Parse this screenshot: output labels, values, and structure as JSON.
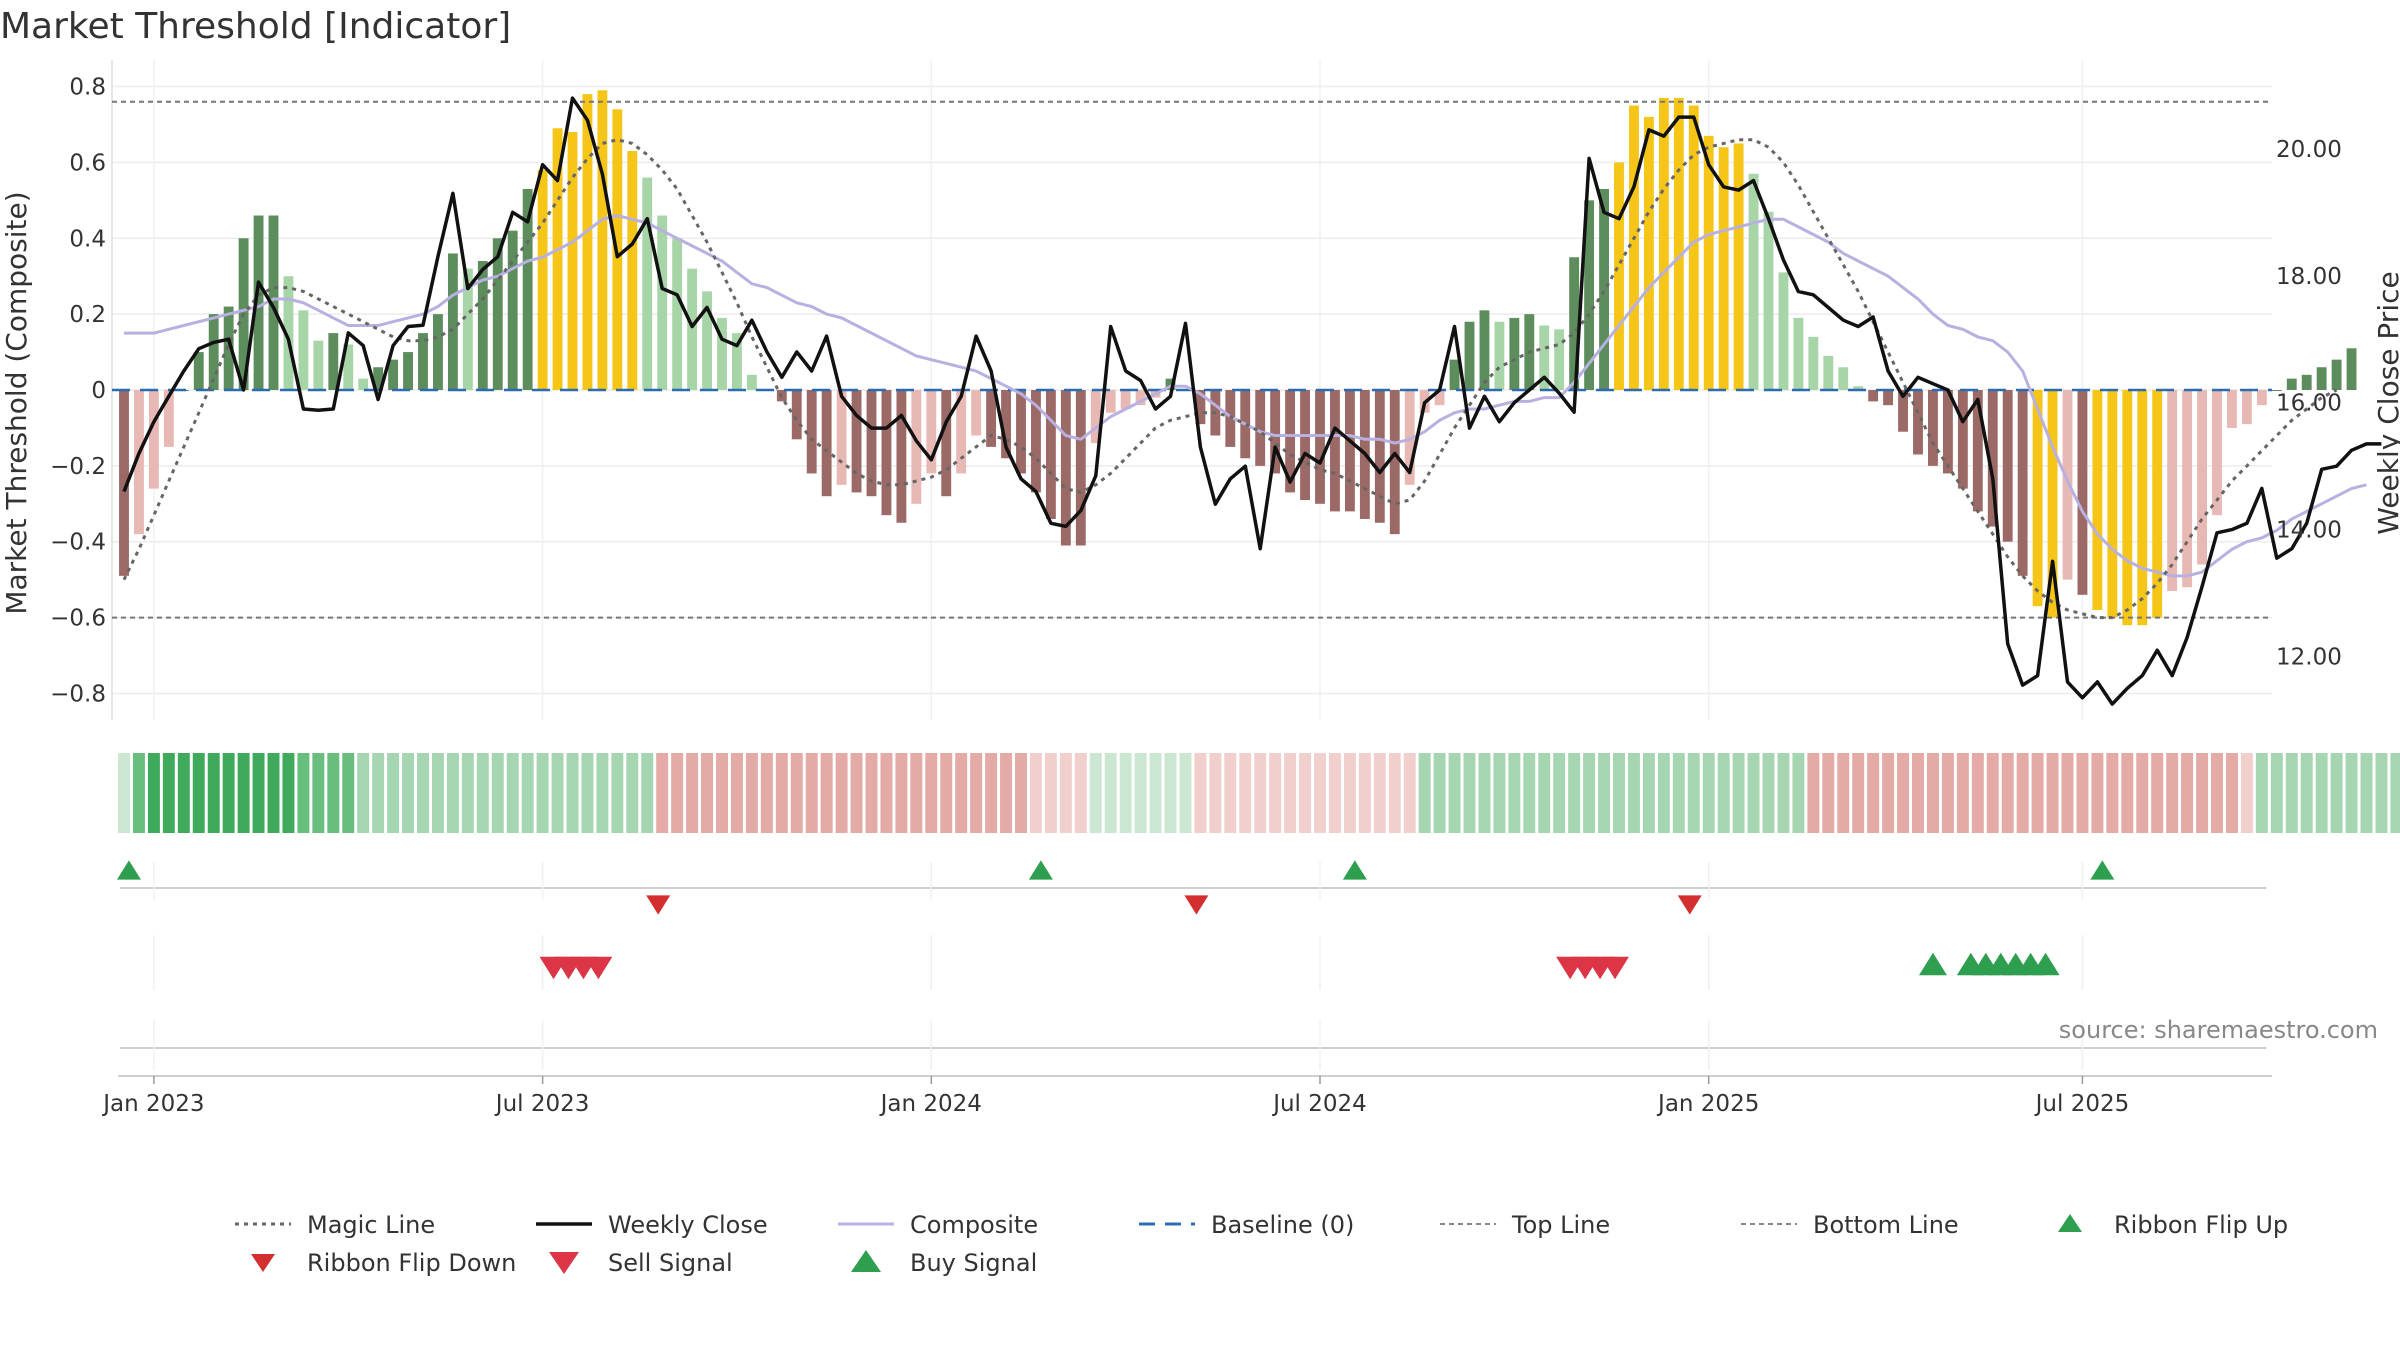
{
  "chart_data": {
    "type": "bar",
    "title": "Market Threshold [Indicator]",
    "ylabel_left": "Market Threshold (Composite)",
    "ylabel_right": "Weekly Close Price",
    "source": "source: sharemaestro.com",
    "ylim_left": [
      -0.87,
      0.87
    ],
    "ylim_right": [
      11.0,
      21.4
    ],
    "y_ticks_left": [
      "0.8",
      "0.6",
      "0.4",
      "0.2",
      "0",
      "−0.2",
      "−0.4",
      "−0.6",
      "−0.8"
    ],
    "y_ticks_left_values": [
      0.8,
      0.6,
      0.4,
      0.2,
      0,
      -0.2,
      -0.4,
      -0.6,
      -0.8
    ],
    "y_ticks_right": [
      "20.00",
      "18.00",
      "16.00",
      "14.00",
      "12.00"
    ],
    "y_ticks_right_values": [
      20,
      18,
      16,
      14,
      12
    ],
    "x_ticks": [
      "Jan 2023",
      "Jul 2023",
      "Jan 2024",
      "Jul 2024",
      "Jan 2025",
      "Jul 2025"
    ],
    "x_tick_weeks": [
      2,
      28,
      54,
      80,
      106,
      131
    ],
    "top_line": 0.76,
    "bottom_line": -0.6,
    "grid": true,
    "colors": {
      "strong_up": "#5d8c5d",
      "weak_up": "#a8d5a8",
      "strong_down": "#9c6a66",
      "weak_down": "#e8b8b4",
      "extreme": "#f5c518",
      "close": "#111111",
      "composite": "#b8b0e0",
      "magic": "#666666",
      "baseline": "#2b6cb0",
      "buy": "#2e9e4f",
      "sell": "#dc3545",
      "flip_up": "#2e9e4f",
      "flip_down": "#d32f2f"
    },
    "bars": [
      -0.49,
      -0.38,
      -0.26,
      -0.15,
      0,
      0.1,
      0.2,
      0.22,
      0.4,
      0.46,
      0.46,
      0.3,
      0.21,
      0.13,
      0.15,
      0.12,
      0.03,
      0.06,
      0.08,
      0.1,
      0.15,
      0.2,
      0.36,
      0.32,
      0.34,
      0.4,
      0.42,
      0.53,
      0.58,
      0.69,
      0.68,
      0.78,
      0.79,
      0.74,
      0.63,
      0.56,
      0.46,
      0.4,
      0.32,
      0.26,
      0.19,
      0.15,
      0.04,
      0,
      -0.03,
      -0.13,
      -0.22,
      -0.28,
      -0.25,
      -0.27,
      -0.28,
      -0.33,
      -0.35,
      -0.3,
      -0.22,
      -0.28,
      -0.22,
      -0.12,
      -0.15,
      -0.18,
      -0.22,
      -0.27,
      -0.34,
      -0.41,
      -0.41,
      -0.14,
      -0.06,
      -0.05,
      -0.04,
      -0.02,
      0.03,
      0,
      -0.09,
      -0.12,
      -0.15,
      -0.18,
      -0.2,
      -0.22,
      -0.27,
      -0.29,
      -0.3,
      -0.32,
      -0.32,
      -0.34,
      -0.35,
      -0.38,
      -0.25,
      -0.06,
      -0.04,
      0.08,
      0.18,
      0.21,
      0.18,
      0.19,
      0.2,
      0.17,
      0.16,
      0.35,
      0.5,
      0.53,
      0.6,
      0.75,
      0.72,
      0.77,
      0.77,
      0.75,
      0.67,
      0.64,
      0.65,
      0.57,
      0.47,
      0.31,
      0.19,
      0.14,
      0.09,
      0.06,
      0.01,
      -0.03,
      -0.04,
      -0.11,
      -0.17,
      -0.2,
      -0.22,
      -0.26,
      -0.32,
      -0.36,
      -0.4,
      -0.49,
      -0.57,
      -0.6,
      -0.5,
      -0.54,
      -0.58,
      -0.6,
      -0.62,
      -0.62,
      -0.6,
      -0.53,
      -0.52,
      -0.46,
      -0.33,
      -0.1,
      -0.09,
      -0.04,
      0,
      0.03,
      0.04,
      0.06,
      0.08,
      0.11
    ],
    "weekly_close": [
      14.6,
      15.2,
      15.7,
      16.1,
      16.5,
      16.85,
      16.95,
      17.0,
      16.2,
      17.9,
      17.5,
      17.0,
      15.9,
      15.88,
      15.9,
      17.1,
      16.9,
      16.05,
      16.9,
      17.2,
      17.22,
      18.3,
      19.3,
      17.8,
      18.1,
      18.3,
      19.0,
      18.85,
      19.75,
      19.5,
      20.8,
      20.45,
      19.6,
      18.3,
      18.5,
      18.9,
      17.8,
      17.7,
      17.2,
      17.5,
      17.0,
      16.9,
      17.3,
      16.8,
      16.4,
      16.8,
      16.5,
      17.05,
      16.1,
      15.8,
      15.6,
      15.6,
      15.8,
      15.4,
      15.1,
      15.7,
      16.1,
      17.05,
      16.5,
      15.3,
      14.8,
      14.6,
      14.1,
      14.05,
      14.3,
      14.85,
      17.2,
      16.5,
      16.35,
      15.9,
      16.1,
      17.25,
      15.3,
      14.4,
      14.8,
      15.0,
      13.7,
      15.3,
      14.75,
      15.2,
      15.05,
      15.6,
      15.4,
      15.2,
      14.9,
      15.2,
      14.9,
      16.0,
      16.2,
      17.2,
      15.6,
      16.1,
      15.7,
      16.0,
      16.2,
      16.4,
      16.15,
      15.85,
      19.85,
      19.0,
      18.9,
      19.4,
      20.3,
      20.2,
      20.5,
      20.5,
      19.75,
      19.4,
      19.35,
      19.5,
      18.9,
      18.25,
      17.75,
      17.7,
      17.5,
      17.3,
      17.2,
      17.35,
      16.5,
      16.1,
      16.4,
      16.3,
      16.2,
      15.7,
      16.05,
      14.8,
      12.2,
      11.55,
      11.7,
      13.5,
      11.6,
      11.35,
      11.6,
      11.25,
      11.5,
      11.7,
      12.1,
      11.7,
      12.3,
      13.1,
      13.95,
      14.0,
      14.1,
      14.65,
      13.55,
      13.7,
      14.1,
      14.95,
      15.0,
      15.25,
      15.35,
      15.35
    ],
    "composite": [
      0.15,
      0.15,
      0.15,
      0.16,
      0.17,
      0.18,
      0.19,
      0.2,
      0.21,
      0.22,
      0.24,
      0.24,
      0.23,
      0.21,
      0.19,
      0.17,
      0.17,
      0.17,
      0.18,
      0.19,
      0.2,
      0.22,
      0.25,
      0.27,
      0.29,
      0.3,
      0.32,
      0.34,
      0.35,
      0.37,
      0.39,
      0.42,
      0.45,
      0.46,
      0.45,
      0.44,
      0.42,
      0.4,
      0.38,
      0.36,
      0.34,
      0.31,
      0.28,
      0.27,
      0.25,
      0.23,
      0.22,
      0.2,
      0.19,
      0.17,
      0.15,
      0.13,
      0.11,
      0.09,
      0.08,
      0.07,
      0.06,
      0.05,
      0.03,
      0.01,
      -0.01,
      -0.04,
      -0.08,
      -0.12,
      -0.13,
      -0.1,
      -0.07,
      -0.05,
      -0.03,
      -0.01,
      0.01,
      0.01,
      -0.01,
      -0.04,
      -0.07,
      -0.09,
      -0.11,
      -0.12,
      -0.12,
      -0.12,
      -0.12,
      -0.12,
      -0.12,
      -0.13,
      -0.13,
      -0.14,
      -0.13,
      -0.11,
      -0.08,
      -0.06,
      -0.05,
      -0.05,
      -0.04,
      -0.03,
      -0.03,
      -0.02,
      -0.02,
      0.02,
      0.07,
      0.12,
      0.17,
      0.22,
      0.27,
      0.31,
      0.35,
      0.39,
      0.41,
      0.42,
      0.43,
      0.44,
      0.45,
      0.45,
      0.43,
      0.41,
      0.39,
      0.36,
      0.34,
      0.32,
      0.3,
      0.27,
      0.24,
      0.2,
      0.17,
      0.16,
      0.14,
      0.13,
      0.1,
      0.05,
      -0.05,
      -0.15,
      -0.24,
      -0.32,
      -0.38,
      -0.42,
      -0.45,
      -0.47,
      -0.48,
      -0.49,
      -0.49,
      -0.48,
      -0.45,
      -0.42,
      -0.4,
      -0.39,
      -0.37,
      -0.34,
      -0.32,
      -0.3,
      -0.28,
      -0.26,
      -0.25
    ],
    "magic_line": [
      -0.5,
      -0.42,
      -0.33,
      -0.24,
      -0.15,
      -0.06,
      0.03,
      0.12,
      0.2,
      0.25,
      0.27,
      0.27,
      0.26,
      0.24,
      0.22,
      0.2,
      0.18,
      0.16,
      0.14,
      0.13,
      0.13,
      0.14,
      0.16,
      0.2,
      0.24,
      0.29,
      0.34,
      0.39,
      0.44,
      0.5,
      0.56,
      0.61,
      0.65,
      0.66,
      0.65,
      0.62,
      0.58,
      0.53,
      0.46,
      0.39,
      0.31,
      0.23,
      0.14,
      0.06,
      -0.02,
      -0.08,
      -0.13,
      -0.16,
      -0.19,
      -0.22,
      -0.24,
      -0.25,
      -0.25,
      -0.24,
      -0.23,
      -0.21,
      -0.18,
      -0.15,
      -0.12,
      -0.13,
      -0.15,
      -0.18,
      -0.22,
      -0.26,
      -0.27,
      -0.25,
      -0.22,
      -0.18,
      -0.14,
      -0.1,
      -0.08,
      -0.07,
      -0.06,
      -0.06,
      -0.07,
      -0.09,
      -0.11,
      -0.14,
      -0.17,
      -0.19,
      -0.21,
      -0.22,
      -0.24,
      -0.26,
      -0.28,
      -0.3,
      -0.29,
      -0.24,
      -0.17,
      -0.1,
      -0.04,
      0.02,
      0.06,
      0.08,
      0.1,
      0.11,
      0.12,
      0.15,
      0.2,
      0.26,
      0.33,
      0.4,
      0.47,
      0.53,
      0.58,
      0.62,
      0.64,
      0.65,
      0.66,
      0.66,
      0.64,
      0.6,
      0.54,
      0.47,
      0.4,
      0.33,
      0.26,
      0.18,
      0.1,
      0.02,
      -0.06,
      -0.14,
      -0.2,
      -0.26,
      -0.32,
      -0.38,
      -0.44,
      -0.49,
      -0.53,
      -0.56,
      -0.58,
      -0.59,
      -0.6,
      -0.6,
      -0.58,
      -0.55,
      -0.51,
      -0.46,
      -0.4,
      -0.34,
      -0.29,
      -0.24,
      -0.2,
      -0.16,
      -0.12,
      -0.08,
      -0.05,
      -0.02,
      0.0
    ],
    "ribbon": [
      1,
      3,
      4,
      4,
      4,
      4,
      4,
      4,
      4,
      4,
      4,
      4,
      3,
      3,
      3,
      3,
      2,
      2,
      2,
      2,
      2,
      2,
      2,
      2,
      2,
      2,
      2,
      2,
      2,
      2,
      2,
      2,
      2,
      2,
      2,
      2,
      -2,
      -2,
      -2,
      -2,
      -2,
      -2,
      -2,
      -2,
      -2,
      -2,
      -2,
      -2,
      -2,
      -2,
      -2,
      -2,
      -2,
      -2,
      -2,
      -2,
      -2,
      -2,
      -2,
      -2,
      -2,
      -1,
      -1,
      -1,
      -1,
      1,
      1,
      1,
      1,
      1,
      1,
      1,
      -1,
      -1,
      -1,
      -1,
      -1,
      -1,
      -1,
      -1,
      -1,
      -1,
      -1,
      -1,
      -1,
      -1,
      -1,
      2,
      2,
      2,
      2,
      2,
      2,
      2,
      2,
      2,
      2,
      2,
      2,
      2,
      2,
      2,
      2,
      2,
      2,
      2,
      2,
      2,
      2,
      2,
      2,
      2,
      2,
      -2,
      -2,
      -2,
      -2,
      -2,
      -2,
      -2,
      -2,
      -2,
      -2,
      -2,
      -2,
      -2,
      -2,
      -2,
      -2,
      -2,
      -2,
      -2,
      -2,
      -2,
      -2,
      -2,
      -2,
      -2,
      -2,
      -2,
      -2,
      -2,
      -1,
      2,
      2,
      2,
      2,
      2,
      2,
      2,
      2,
      2,
      2,
      2
    ],
    "ribbon_flip_up": [
      1,
      62,
      83,
      133
    ],
    "ribbon_flip_down": [
      36,
      72,
      105
    ],
    "sell_signal": [
      29,
      30,
      31,
      32,
      97,
      98,
      99,
      100
    ],
    "buy_signal": [
      121,
      123,
      124,
      125,
      126,
      127,
      128
    ],
    "legend": [
      "Magic Line",
      "Weekly Close",
      "Composite",
      "Baseline (0)",
      "Top Line",
      "Bottom Line",
      "Ribbon Flip Up",
      "Ribbon Flip Down",
      "Sell Signal",
      "Buy Signal"
    ]
  }
}
